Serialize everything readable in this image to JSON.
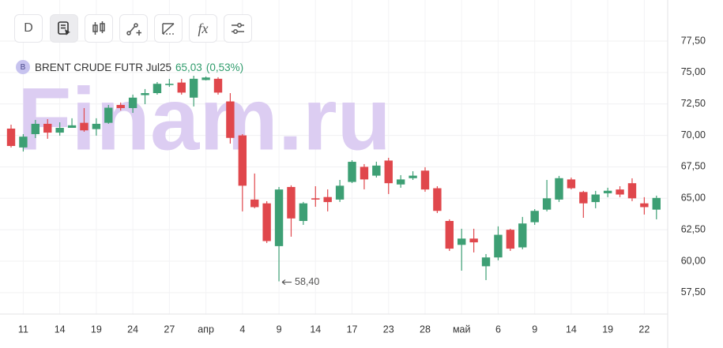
{
  "toolbar": {
    "interval": "D",
    "indicators": "fx"
  },
  "chart_data": {
    "type": "candlestick",
    "title": "BRENT CRUDE FUTR Jul25",
    "badge": "B",
    "last_price": "65,03",
    "change": "(0,53%)",
    "watermark": "Finam.ru",
    "annotation": "58,40",
    "up_color": "#3d9f74",
    "down_color": "#e0474c",
    "categories": [
      null,
      "11",
      null,
      null,
      "14",
      null,
      null,
      "19",
      null,
      null,
      "24",
      null,
      null,
      "27",
      null,
      null,
      "апр",
      null,
      null,
      "4",
      null,
      null,
      "9",
      null,
      null,
      "14",
      null,
      null,
      "17",
      null,
      null,
      "23",
      null,
      null,
      "28",
      null,
      null,
      "май",
      null,
      null,
      "6",
      null,
      null,
      "9",
      null,
      null,
      "14",
      null,
      null,
      "19",
      null,
      null,
      "22",
      null
    ],
    "open": [
      70.54,
      69.04,
      70.1,
      70.92,
      70.22,
      70.6,
      71.0,
      70.5,
      71.0,
      72.42,
      72.17,
      73.2,
      73.36,
      74.0,
      74.2,
      73.0,
      74.4,
      74.5,
      72.7,
      70.0,
      64.9,
      64.6,
      61.2,
      65.9,
      63.2,
      65.0,
      65.1,
      64.9,
      66.3,
      67.5,
      66.8,
      68.0,
      66.1,
      66.6,
      67.2,
      65.8,
      63.2,
      61.3,
      61.8,
      59.6,
      60.3,
      62.5,
      61.1,
      63.1,
      64.1,
      64.9,
      66.5,
      65.5,
      64.7,
      65.4,
      65.7,
      66.2,
      64.6,
      64.1
    ],
    "high": [
      70.85,
      70.1,
      71.23,
      71.29,
      71.04,
      71.36,
      72.17,
      71.36,
      72.42,
      72.61,
      73.24,
      73.68,
      74.24,
      74.49,
      74.49,
      74.74,
      74.68,
      74.62,
      73.36,
      70.1,
      66.97,
      64.77,
      65.9,
      66.03,
      64.71,
      65.96,
      65.71,
      66.46,
      68.03,
      67.72,
      67.91,
      68.22,
      66.84,
      67.15,
      67.47,
      65.96,
      63.33,
      62.58,
      62.58,
      60.57,
      62.77,
      62.58,
      63.52,
      64.14,
      66.46,
      66.78,
      66.65,
      65.59,
      65.59,
      65.84,
      65.96,
      66.59,
      65.09,
      65.21
    ],
    "low": [
      69.04,
      68.72,
      69.79,
      69.73,
      69.98,
      70.6,
      70.29,
      69.98,
      70.92,
      71.98,
      71.79,
      72.48,
      73.24,
      73.86,
      73.24,
      72.3,
      74.37,
      73.24,
      69.35,
      63.96,
      64.21,
      61.45,
      58.4,
      61.95,
      62.89,
      64.33,
      63.96,
      64.71,
      66.21,
      65.71,
      66.65,
      65.34,
      65.84,
      66.46,
      65.52,
      63.83,
      60.82,
      59.25,
      60.7,
      58.5,
      60.07,
      60.82,
      60.95,
      62.89,
      63.96,
      64.71,
      65.71,
      63.45,
      64.21,
      65.09,
      65.09,
      64.77,
      63.71,
      63.33
    ],
    "close": [
      69.16,
      69.9,
      70.92,
      70.22,
      70.6,
      70.8,
      70.4,
      70.92,
      72.2,
      72.17,
      73.0,
      73.36,
      74.1,
      74.1,
      73.4,
      74.5,
      74.6,
      73.4,
      69.8,
      66.0,
      64.3,
      61.6,
      65.7,
      63.4,
      64.6,
      64.9,
      64.7,
      66.0,
      67.9,
      66.5,
      67.6,
      66.2,
      66.5,
      66.8,
      65.7,
      64.0,
      61.0,
      61.8,
      61.5,
      60.3,
      62.1,
      61.0,
      63.0,
      64.0,
      65.0,
      66.6,
      65.8,
      64.6,
      65.3,
      65.6,
      65.3,
      65.0,
      64.3,
      65.03
    ],
    "ylim": [
      55.8,
      80.76
    ],
    "yticks": [
      {
        "value": 57.5,
        "label": "57,50"
      },
      {
        "value": 60,
        "label": "60,00"
      },
      {
        "value": 62.5,
        "label": "62,50"
      },
      {
        "value": 65,
        "label": "65,00"
      },
      {
        "value": 67.5,
        "label": "67,50"
      },
      {
        "value": 70,
        "label": "70,00"
      },
      {
        "value": 72.5,
        "label": "72,50"
      },
      {
        "value": 75,
        "label": "75,00"
      },
      {
        "value": 77.5,
        "label": "77,50"
      }
    ],
    "grid": true
  }
}
